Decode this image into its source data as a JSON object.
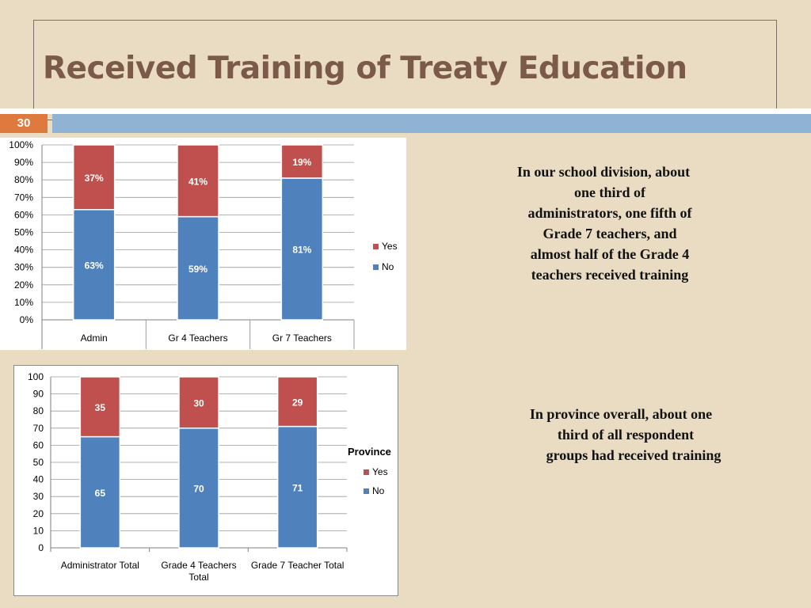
{
  "slide": {
    "title": "Received Training of Treaty Education",
    "number": "30"
  },
  "text_blocks": {
    "division": [
      "In our school division, about",
      "one third of",
      "administrators, one fifth of",
      "Grade 7 teachers, and",
      "almost half of the Grade 4",
      "teachers  received training"
    ],
    "province": [
      "In province overall, about one",
      "third of all respondent",
      "groups had received training"
    ]
  },
  "colors": {
    "no": "#4f81bd",
    "yes": "#c0504d",
    "background": "#eadcc3",
    "slide_number": "#de7a3d",
    "band": "#90b3d4"
  },
  "chart_data": [
    {
      "type": "bar",
      "stacked": true,
      "title": "",
      "categories": [
        "Admin",
        "Gr 4 Teachers",
        "Gr 7 Teachers"
      ],
      "series": [
        {
          "name": "No",
          "values": [
            63,
            59,
            81
          ],
          "labels": [
            "63%",
            "59%",
            "81%"
          ]
        },
        {
          "name": "Yes",
          "values": [
            37,
            41,
            19
          ],
          "labels": [
            "37%",
            "41%",
            "19%"
          ]
        }
      ],
      "yticks": [
        "0%",
        "10%",
        "20%",
        "30%",
        "40%",
        "50%",
        "60%",
        "70%",
        "80%",
        "90%",
        "100%"
      ],
      "ylim": [
        0,
        100
      ],
      "legend": [
        "Yes",
        "No"
      ],
      "legend_position": "right",
      "grid": true
    },
    {
      "type": "bar",
      "stacked": true,
      "title": "Province",
      "categories": [
        "Administrator Total",
        "Grade 4 Teachers Total",
        "Grade 7 Teacher Total"
      ],
      "series": [
        {
          "name": "No",
          "values": [
            65,
            70,
            71
          ],
          "labels": [
            "65",
            "70",
            "71"
          ]
        },
        {
          "name": "Yes",
          "values": [
            35,
            30,
            29
          ],
          "labels": [
            "35",
            "30",
            "29"
          ]
        }
      ],
      "yticks": [
        "0",
        "10",
        "20",
        "30",
        "40",
        "50",
        "60",
        "70",
        "80",
        "90",
        "100"
      ],
      "ylim": [
        0,
        100
      ],
      "legend": [
        "Yes",
        "No"
      ],
      "legend_position": "right",
      "grid": true
    }
  ]
}
